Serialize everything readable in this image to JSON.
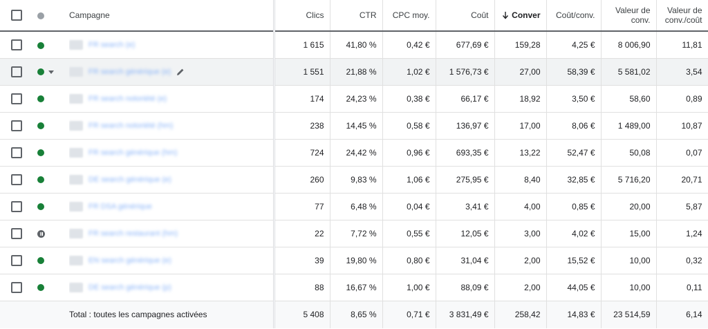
{
  "columns": {
    "campagne": "Campagne",
    "clics": "Clics",
    "ctr": "CTR",
    "cpc": "CPC moy.",
    "cout": "Coût",
    "conversions": "Conver",
    "cout_conv": "Coût/conv.",
    "valeur_conv_1": "Valeur de",
    "valeur_conv_2": "conv.",
    "valeur_cout_1": "Valeur de",
    "valeur_cout_2": "conv./coût"
  },
  "colors": {
    "enabled": "#188038",
    "paused": "#5f6368",
    "link": "#1a73e8"
  },
  "rows": [
    {
      "status": "enabled",
      "name": "FR search (e)",
      "clics": "1 615",
      "ctr": "41,80 %",
      "cpc": "0,42 €",
      "cout": "677,69 €",
      "conversions": "159,28",
      "cout_conv": "4,25 €",
      "valeur_conv": "8 006,90",
      "valeur_cout": "11,81"
    },
    {
      "status": "enabled",
      "name": "FR search générique (e)",
      "clics": "1 551",
      "ctr": "21,88 %",
      "cpc": "1,02 €",
      "cout": "1 576,73 €",
      "conversions": "27,00",
      "cout_conv": "58,39 €",
      "valeur_conv": "5 581,02",
      "valeur_cout": "3,54"
    },
    {
      "status": "enabled",
      "name": "FR search notoriété (e)",
      "clics": "174",
      "ctr": "24,23 %",
      "cpc": "0,38 €",
      "cout": "66,17 €",
      "conversions": "18,92",
      "cout_conv": "3,50 €",
      "valeur_conv": "58,60",
      "valeur_cout": "0,89"
    },
    {
      "status": "enabled",
      "name": "FR search notoriété (hm)",
      "clics": "238",
      "ctr": "14,45 %",
      "cpc": "0,58 €",
      "cout": "136,97 €",
      "conversions": "17,00",
      "cout_conv": "8,06 €",
      "valeur_conv": "1 489,00",
      "valeur_cout": "10,87"
    },
    {
      "status": "enabled",
      "name": "FR search générique (hm)",
      "clics": "724",
      "ctr": "24,42 %",
      "cpc": "0,96 €",
      "cout": "693,35 €",
      "conversions": "13,22",
      "cout_conv": "52,47 €",
      "valeur_conv": "50,08",
      "valeur_cout": "0,07"
    },
    {
      "status": "enabled",
      "name": "DE search générique (e)",
      "clics": "260",
      "ctr": "9,83 %",
      "cpc": "1,06 €",
      "cout": "275,95 €",
      "conversions": "8,40",
      "cout_conv": "32,85 €",
      "valeur_conv": "5 716,20",
      "valeur_cout": "20,71"
    },
    {
      "status": "enabled",
      "name": "FR DSA générique",
      "clics": "77",
      "ctr": "6,48 %",
      "cpc": "0,04 €",
      "cout": "3,41 €",
      "conversions": "4,00",
      "cout_conv": "0,85 €",
      "valeur_conv": "20,00",
      "valeur_cout": "5,87"
    },
    {
      "status": "paused",
      "name": "FR search restaurant (hm)",
      "clics": "22",
      "ctr": "7,72 %",
      "cpc": "0,55 €",
      "cout": "12,05 €",
      "conversions": "3,00",
      "cout_conv": "4,02 €",
      "valeur_conv": "15,00",
      "valeur_cout": "1,24"
    },
    {
      "status": "enabled",
      "name": "EN search générique (e)",
      "clics": "39",
      "ctr": "19,80 %",
      "cpc": "0,80 €",
      "cout": "31,04 €",
      "conversions": "2,00",
      "cout_conv": "15,52 €",
      "valeur_conv": "10,00",
      "valeur_cout": "0,32"
    },
    {
      "status": "enabled",
      "name": "DE search générique (p)",
      "clics": "88",
      "ctr": "16,67 %",
      "cpc": "1,00 €",
      "cout": "88,09 €",
      "conversions": "2,00",
      "cout_conv": "44,05 €",
      "valeur_conv": "10,00",
      "valeur_cout": "0,11"
    }
  ],
  "total": {
    "label": "Total : toutes les campagnes activées",
    "clics": "5 408",
    "ctr": "8,65 %",
    "cpc": "0,71 €",
    "cout": "3 831,49 €",
    "conversions": "258,42",
    "cout_conv": "14,83 €",
    "valeur_conv": "23 514,59",
    "valeur_cout": "6,14"
  }
}
